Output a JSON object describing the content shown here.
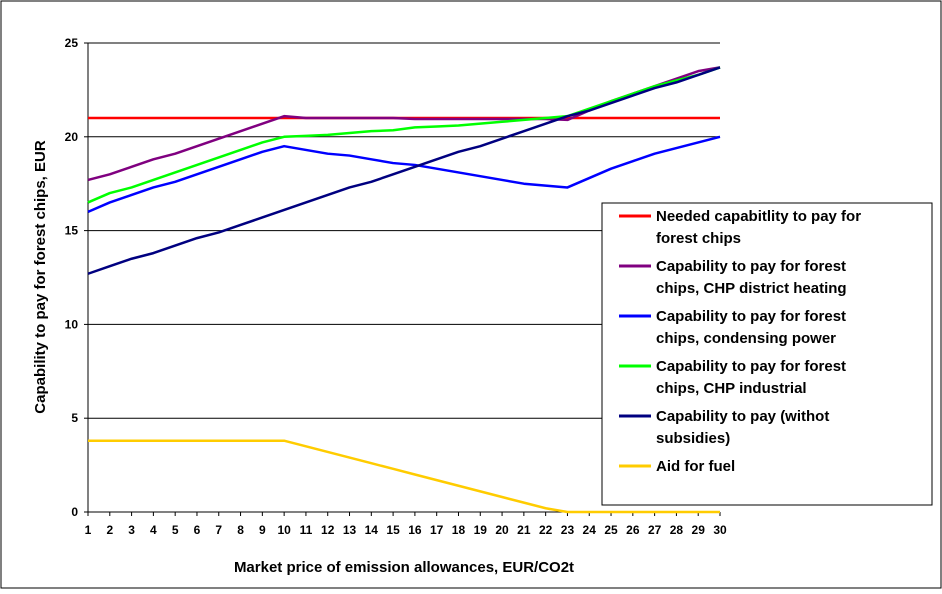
{
  "chart_data": {
    "type": "line",
    "title": "",
    "xlabel": "Market price of emission allowances, EUR/CO2t",
    "ylabel": "Capability to pay for forest chips, EUR",
    "xlim": [
      1,
      30
    ],
    "ylim": [
      0,
      25
    ],
    "yticks": [
      0,
      5,
      10,
      15,
      20,
      25
    ],
    "grid": "horizontal",
    "legend_position": "right",
    "x": [
      1,
      2,
      3,
      4,
      5,
      6,
      7,
      8,
      9,
      10,
      11,
      12,
      13,
      14,
      15,
      16,
      17,
      18,
      19,
      20,
      21,
      22,
      23,
      24,
      25,
      26,
      27,
      28,
      29,
      30
    ],
    "series": [
      {
        "name": "Needed capabitlity to pay for forest chips",
        "color": "#ff0000",
        "values": [
          21.0,
          21.0,
          21.0,
          21.0,
          21.0,
          21.0,
          21.0,
          21.0,
          21.0,
          21.0,
          21.0,
          21.0,
          21.0,
          21.0,
          21.0,
          21.0,
          21.0,
          21.0,
          21.0,
          21.0,
          21.0,
          21.0,
          21.0,
          21.0,
          21.0,
          21.0,
          21.0,
          21.0,
          21.0,
          21.0
        ]
      },
      {
        "name": "Capability to pay for forest chips, CHP district heating",
        "color": "#800080",
        "values": [
          17.7,
          18.0,
          18.4,
          18.8,
          19.1,
          19.5,
          19.9,
          20.3,
          20.7,
          21.1,
          21.0,
          21.0,
          21.0,
          21.0,
          21.0,
          20.95,
          20.95,
          20.95,
          20.95,
          20.95,
          20.95,
          20.95,
          20.9,
          21.4,
          21.9,
          22.3,
          22.7,
          23.1,
          23.5,
          23.7
        ]
      },
      {
        "name": "Capability to pay for forest chips, condensing power",
        "color": "#0000ff",
        "values": [
          16.0,
          16.5,
          16.9,
          17.3,
          17.6,
          18.0,
          18.4,
          18.8,
          19.2,
          19.5,
          19.3,
          19.1,
          19.0,
          18.8,
          18.6,
          18.5,
          18.3,
          18.1,
          17.9,
          17.7,
          17.5,
          17.4,
          17.3,
          17.8,
          18.3,
          18.7,
          19.1,
          19.4,
          19.7,
          20.0
        ]
      },
      {
        "name": "Capability to pay for forest chips, CHP industrial",
        "color": "#00ff00",
        "values": [
          16.5,
          17.0,
          17.3,
          17.7,
          18.1,
          18.5,
          18.9,
          19.3,
          19.7,
          20.0,
          20.05,
          20.1,
          20.2,
          20.3,
          20.35,
          20.5,
          20.55,
          20.6,
          20.7,
          20.8,
          20.9,
          21.0,
          21.1,
          21.5,
          21.9,
          22.3,
          22.7,
          23.0,
          23.3,
          23.7
        ]
      },
      {
        "name": "Capability to pay (withot subsidies)",
        "color": "#000080",
        "values": [
          12.7,
          13.1,
          13.5,
          13.8,
          14.2,
          14.6,
          14.9,
          15.3,
          15.7,
          16.1,
          16.5,
          16.9,
          17.3,
          17.6,
          18.0,
          18.4,
          18.8,
          19.2,
          19.5,
          19.9,
          20.3,
          20.7,
          21.1,
          21.4,
          21.8,
          22.2,
          22.6,
          22.9,
          23.3,
          23.7
        ]
      },
      {
        "name": "Aid for fuel",
        "color": "#ffcc00",
        "values": [
          3.8,
          3.8,
          3.8,
          3.8,
          3.8,
          3.8,
          3.8,
          3.8,
          3.8,
          3.8,
          3.5,
          3.2,
          2.9,
          2.6,
          2.3,
          2.0,
          1.7,
          1.4,
          1.1,
          0.8,
          0.5,
          0.2,
          0.0,
          0.0,
          0.0,
          0.0,
          0.0,
          0.0,
          0.0,
          0.0
        ]
      }
    ]
  }
}
